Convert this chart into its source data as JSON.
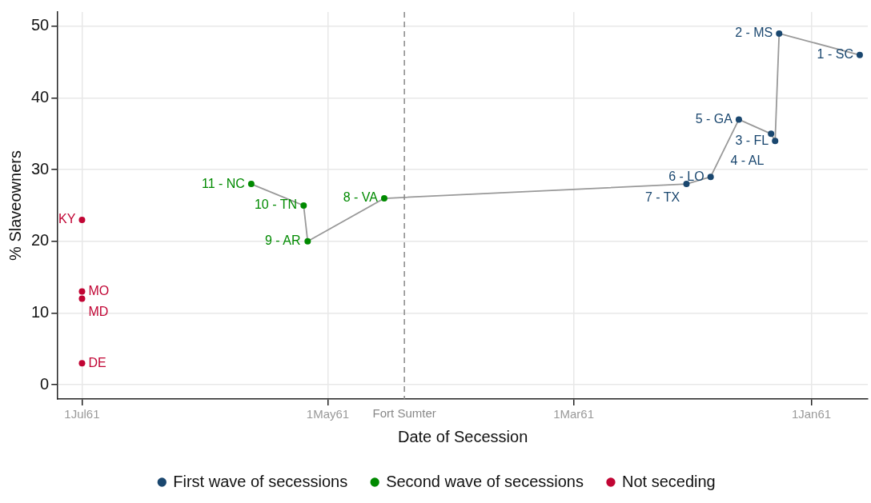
{
  "chart_data": {
    "type": "scatter",
    "xlabel": "Date of Secession",
    "ylabel": "% Slaveowners",
    "xlim": [
      "1861-07-07",
      "1860-12-18"
    ],
    "xticks": [
      {
        "value": "1861-07-01",
        "label": "1Jul61"
      },
      {
        "value": "1861-05-01",
        "label": "1May61"
      },
      {
        "value": "1861-03-01",
        "label": "1Mar61"
      },
      {
        "value": "1861-01-01",
        "label": "1Jan61"
      }
    ],
    "ylim": [
      -2,
      52
    ],
    "yticks": [
      0,
      10,
      20,
      30,
      40,
      50
    ],
    "grid": true,
    "legend": "bottom",
    "marker": "circle",
    "ref_lines": [
      {
        "axis": "x",
        "value": "1861-04-12",
        "label": "Fort Sumter",
        "color": "#888888",
        "line_style": "dashed"
      }
    ],
    "series": [
      {
        "type": "line",
        "color": "#999999",
        "marker": "none",
        "line_style": "solid",
        "x": [
          "1860-12-20",
          "1861-01-09",
          "1861-01-10",
          "1861-01-11",
          "1861-01-19",
          "1861-01-26",
          "1861-02-01",
          "1861-04-17",
          "1861-05-06",
          "1861-05-07",
          "1861-05-20"
        ],
        "values": [
          46,
          49,
          34,
          35,
          37,
          29,
          28,
          26,
          20,
          25,
          28
        ]
      },
      {
        "name": "First wave of secessions",
        "color": "#1a476f",
        "x": [
          "1860-12-20",
          "1861-01-09",
          "1861-01-10",
          "1861-01-11",
          "1861-01-19",
          "1861-01-26",
          "1861-02-01"
        ],
        "values": [
          46,
          49,
          34,
          35,
          37,
          29,
          28
        ]
      },
      {
        "name": "Second wave of secessions",
        "color": "#008a00",
        "x": [
          "1861-04-17",
          "1861-05-06",
          "1861-05-07",
          "1861-05-20"
        ],
        "values": [
          26,
          20,
          25,
          28
        ]
      },
      {
        "name": "Not seceding",
        "color": "#c10534",
        "x": [
          "1861-07-01",
          "1861-07-01",
          "1861-07-01",
          "1861-07-01"
        ],
        "values": [
          23,
          13,
          12,
          3
        ]
      }
    ],
    "annotations": [
      {
        "text": "1 - SC",
        "x": "1860-12-20",
        "y": 46
      },
      {
        "text": "2 - MS",
        "x": "1861-01-09",
        "y": 49
      },
      {
        "text": "3 - FL",
        "x": "1861-01-10",
        "y": 34
      },
      {
        "text": "4 - AL",
        "x": "1861-01-11",
        "y": 35
      },
      {
        "text": "5 - GA",
        "x": "1861-01-19",
        "y": 37
      },
      {
        "text": "6 - LO",
        "x": "1861-01-26",
        "y": 29
      },
      {
        "text": "7 - TX",
        "x": "1861-02-01",
        "y": 28
      },
      {
        "text": "8 - VA",
        "x": "1861-04-17",
        "y": 26
      },
      {
        "text": "9 - AR",
        "x": "1861-05-06",
        "y": 20
      },
      {
        "text": "10 - TN",
        "x": "1861-05-07",
        "y": 25
      },
      {
        "text": "11 - NC",
        "x": "1861-05-20",
        "y": 28
      },
      {
        "text": "KY",
        "x": "1861-07-01",
        "y": 23
      },
      {
        "text": "MO",
        "x": "1861-07-01",
        "y": 13
      },
      {
        "text": "MD",
        "x": "1861-07-01",
        "y": 12
      },
      {
        "text": "DE",
        "x": "1861-07-01",
        "y": 3
      }
    ]
  }
}
